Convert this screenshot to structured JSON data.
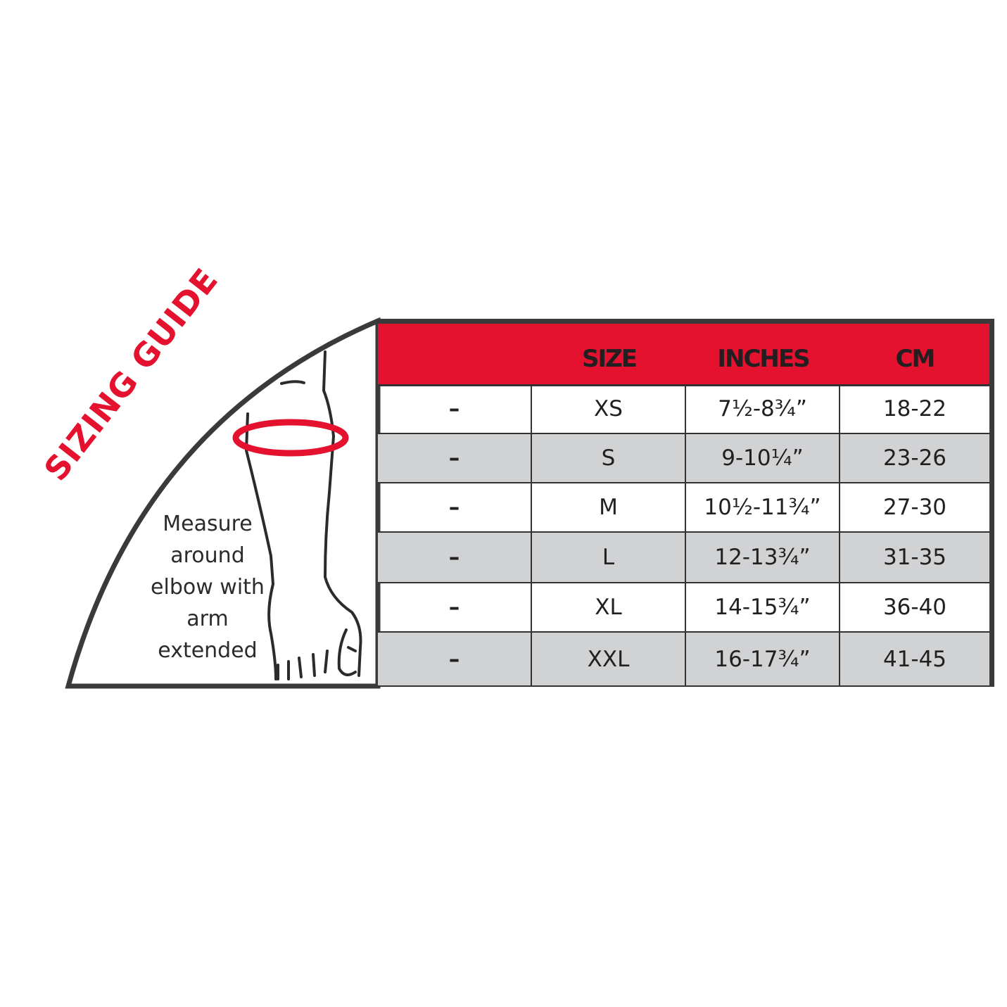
{
  "title": "SIZING GUIDE",
  "instruction": [
    "Measure",
    "around",
    "elbow with",
    "arm",
    "extended"
  ],
  "colors": {
    "accent": "#e4122e",
    "stripe": "#d1d2d4",
    "border": "#3a3a3a",
    "text": "#231f20"
  },
  "table": {
    "headers": [
      "",
      "SIZE",
      "INCHES",
      "CM"
    ],
    "rows": [
      {
        "mark": "–",
        "size": "XS",
        "inches": "7½-8¾”",
        "cm": "18-22"
      },
      {
        "mark": "–",
        "size": "S",
        "inches": "9-10¼”",
        "cm": "23-26"
      },
      {
        "mark": "–",
        "size": "M",
        "inches": "10½-11¾”",
        "cm": "27-30"
      },
      {
        "mark": "–",
        "size": "L",
        "inches": "12-13¾”",
        "cm": "31-35"
      },
      {
        "mark": "–",
        "size": "XL",
        "inches": "14-15¾”",
        "cm": "36-40"
      },
      {
        "mark": "–",
        "size": "XXL",
        "inches": "16-17¾”",
        "cm": "41-45"
      }
    ]
  }
}
